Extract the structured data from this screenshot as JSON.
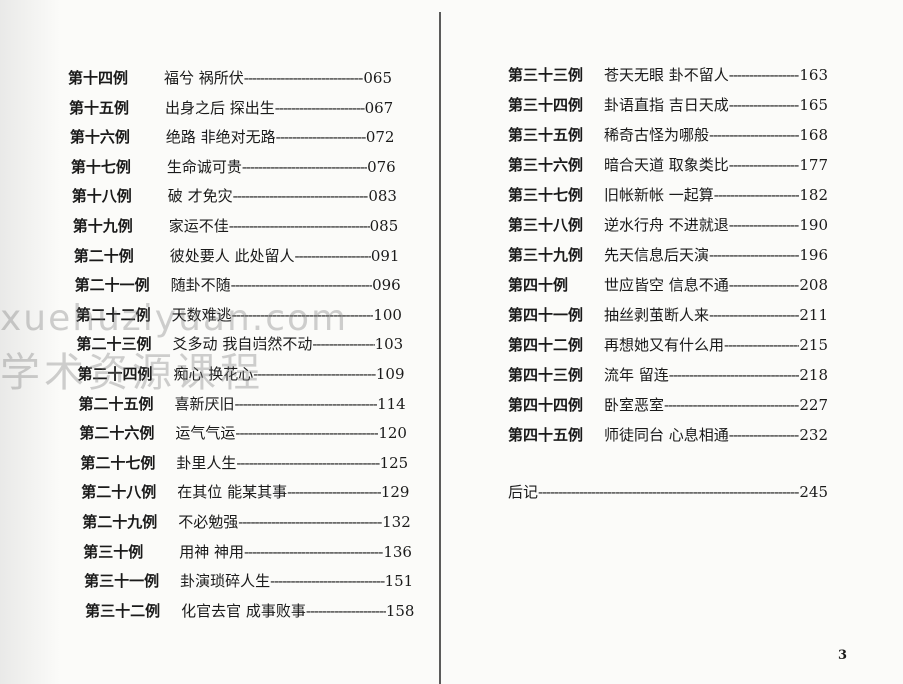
{
  "left_entries": [
    {
      "num": "第十四例",
      "title": "福兮 祸所伏",
      "page": "065"
    },
    {
      "num": "第十五例",
      "title": "出身之后 探出生",
      "page": "067"
    },
    {
      "num": "第十六例",
      "title": "绝路 非绝对无路",
      "page": "072"
    },
    {
      "num": "第十七例",
      "title": "生命诚可贵",
      "page": "076"
    },
    {
      "num": "第十八例",
      "title": "破 才免灾",
      "page": "083"
    },
    {
      "num": "第十九例",
      "title": "家运不佳",
      "page": "085"
    },
    {
      "num": "第二十例",
      "title": "彼处要人 此处留人",
      "page": "091"
    },
    {
      "num": "第二十一例",
      "title": "随卦不随",
      "page": "096"
    },
    {
      "num": "第二十二例",
      "title": "天数难逃",
      "page": "100"
    },
    {
      "num": "第二十三例",
      "title": "爻多动 我自岿然不动",
      "page": "103"
    },
    {
      "num": "第二十四例",
      "title": "痴心 换花心",
      "page": "109"
    },
    {
      "num": "第二十五例",
      "title": "喜新厌旧",
      "page": "114"
    },
    {
      "num": "第二十六例",
      "title": "运气气运",
      "page": "120"
    },
    {
      "num": "第二十七例",
      "title": "卦里人生",
      "page": "125"
    },
    {
      "num": "第二十八例",
      "title": "在其位 能某其事",
      "page": "129"
    },
    {
      "num": "第二十九例",
      "title": "不必勉强",
      "page": "132"
    },
    {
      "num": "第三十例",
      "title": "用神 神用",
      "page": "136"
    },
    {
      "num": "第三十一例",
      "title": "卦演琐碎人生",
      "page": "151"
    },
    {
      "num": "第三十二例",
      "title": "化官去官 成事败事",
      "page": "158"
    }
  ],
  "right_entries": [
    {
      "num": "第三十三例",
      "title": "苍天无眼 卦不留人",
      "page": "163"
    },
    {
      "num": "第三十四例",
      "title": "卦语直指 吉日天成",
      "page": "165"
    },
    {
      "num": "第三十五例",
      "title": "稀奇古怪为哪般",
      "page": "168"
    },
    {
      "num": "第三十六例",
      "title": "暗合天道 取象类比",
      "page": "177"
    },
    {
      "num": "第三十七例",
      "title": "旧帐新帐 一起算",
      "page": "182"
    },
    {
      "num": "第三十八例",
      "title": "逆水行舟 不进就退",
      "page": "190"
    },
    {
      "num": "第三十九例",
      "title": "先天信息后天演",
      "page": "196"
    },
    {
      "num": "第四十例",
      "title": "世应皆空 信息不通",
      "page": "208"
    },
    {
      "num": "第四十一例",
      "title": "抽丝剥茧断人来",
      "page": "211"
    },
    {
      "num": "第四十二例",
      "title": "再想她又有什么用",
      "page": "215"
    },
    {
      "num": "第四十三例",
      "title": "流年 留连",
      "page": "218"
    },
    {
      "num": "第四十四例",
      "title": "卧室恶室",
      "page": "227"
    },
    {
      "num": "第四十五例",
      "title": "师徒同台 心息相通",
      "page": "232"
    }
  ],
  "afterword": {
    "title": "后记",
    "page": "245"
  },
  "page_number": "3",
  "watermark": {
    "line1": "xuehuziyuan.com",
    "line2": "学术资源课程"
  }
}
